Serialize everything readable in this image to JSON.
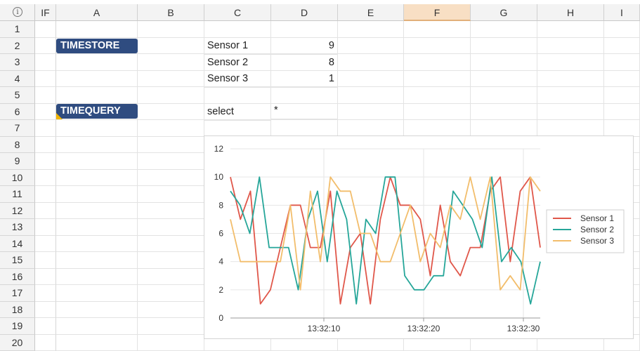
{
  "columns": {
    "if": "IF",
    "a": "A",
    "b": "B",
    "c": "C",
    "d": "D",
    "e": "E",
    "f": "F",
    "g": "G",
    "h": "H",
    "i": "I"
  },
  "info_glyph": "i",
  "rows": [
    "1",
    "2",
    "3",
    "4",
    "5",
    "6",
    "7",
    "8",
    "9",
    "10",
    "11",
    "12",
    "13",
    "14",
    "15",
    "16",
    "17",
    "18",
    "19",
    "20"
  ],
  "buttons": {
    "timestore": "TIMESTORE",
    "timequery": "TIMEQUERY"
  },
  "cells": {
    "c2": "Sensor 1",
    "d2": "9",
    "c3": "Sensor 2",
    "d3": "8",
    "c4": "Sensor 3",
    "d4": "1",
    "c6": "select",
    "d6": "*"
  },
  "colors": {
    "selected_header": "#f8dfc4",
    "button": "#2f4c80",
    "flag": "#f0b400"
  },
  "chart_data": {
    "type": "line",
    "ylim": [
      0,
      12
    ],
    "yticks": [
      "0",
      "2",
      "4",
      "6",
      "8",
      "10",
      "12"
    ],
    "xticks": [
      "13:32:10",
      "13:32:20",
      "13:32:30"
    ],
    "grid": true,
    "legend_placement": "right",
    "series": [
      {
        "name": "Sensor 1",
        "color": "#e0574a",
        "values": [
          10,
          7,
          9,
          1,
          2,
          5,
          8,
          8,
          5,
          5,
          9,
          1,
          5,
          6,
          1,
          7,
          10,
          8,
          8,
          7,
          3,
          8,
          4,
          3,
          5,
          5,
          9,
          10,
          4,
          9,
          10,
          5
        ]
      },
      {
        "name": "Sensor 2",
        "color": "#26a699",
        "values": [
          9,
          8,
          6,
          10,
          5,
          5,
          5,
          2,
          7,
          9,
          4,
          9,
          7,
          1,
          7,
          6,
          10,
          10,
          3,
          2,
          2,
          3,
          3,
          9,
          8,
          7,
          5,
          10,
          4,
          5,
          4,
          1,
          4
        ]
      },
      {
        "name": "Sensor 3",
        "color": "#f2bd6b",
        "values": [
          7,
          4,
          4,
          4,
          4,
          4,
          8,
          2,
          9,
          4,
          10,
          9,
          9,
          6,
          6,
          4,
          4,
          6,
          8,
          4,
          6,
          5,
          8,
          7,
          10,
          7,
          10,
          2,
          3,
          2,
          10,
          9
        ]
      }
    ]
  }
}
